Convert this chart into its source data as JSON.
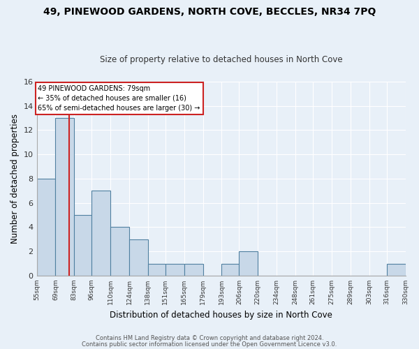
{
  "title": "49, PINEWOOD GARDENS, NORTH COVE, BECCLES, NR34 7PQ",
  "subtitle": "Size of property relative to detached houses in North Cove",
  "xlabel": "Distribution of detached houses by size in North Cove",
  "ylabel": "Number of detached properties",
  "bin_edges": [
    55,
    69,
    83,
    96,
    110,
    124,
    138,
    151,
    165,
    179,
    193,
    206,
    220,
    234,
    248,
    261,
    275,
    289,
    303,
    316,
    330
  ],
  "counts": [
    8,
    13,
    5,
    7,
    4,
    3,
    1,
    1,
    1,
    0,
    1,
    2,
    0,
    0,
    0,
    0,
    0,
    0,
    0,
    1
  ],
  "bar_color": "#c8d8e8",
  "bar_edge_color": "#5080a0",
  "property_value": 79,
  "vline_color": "#cc2222",
  "annotation_text_line1": "49 PINEWOOD GARDENS: 79sqm",
  "annotation_text_line2": "← 35% of detached houses are smaller (16)",
  "annotation_text_line3": "65% of semi-detached houses are larger (30) →",
  "annotation_box_color": "#ffffff",
  "annotation_box_edge_color": "#cc2222",
  "ylim": [
    0,
    16
  ],
  "yticks": [
    0,
    2,
    4,
    6,
    8,
    10,
    12,
    14,
    16
  ],
  "bg_color": "#e8f0f8",
  "grid_color": "#ffffff",
  "footer_line1": "Contains HM Land Registry data © Crown copyright and database right 2024.",
  "footer_line2": "Contains public sector information licensed under the Open Government Licence v3.0."
}
